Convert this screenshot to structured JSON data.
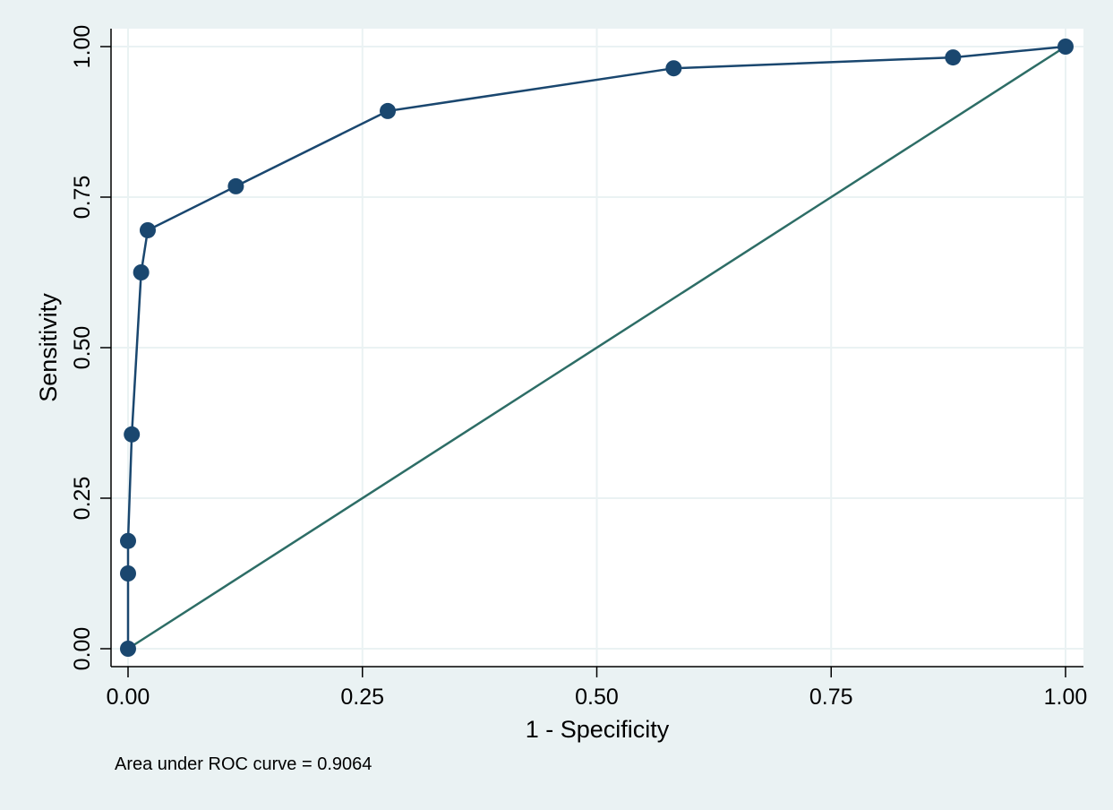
{
  "chart_data": {
    "type": "line",
    "title": "",
    "xlabel": "1 - Specificity",
    "ylabel": "Sensitivity",
    "xlim": [
      0,
      1
    ],
    "ylim": [
      0,
      1
    ],
    "grid": true,
    "xticks": [
      "0.00",
      "0.25",
      "0.50",
      "0.75",
      "1.00"
    ],
    "yticks": [
      "0.00",
      "0.25",
      "0.50",
      "0.75",
      "1.00"
    ],
    "tick_values": [
      0,
      0.25,
      0.5,
      0.75,
      1
    ],
    "series": [
      {
        "name": "ROC curve",
        "color": "#1a476f",
        "x": [
          0,
          0,
          0,
          0.004,
          0.014,
          0.021,
          0.115,
          0.277,
          0.582,
          0.88,
          1
        ],
        "y": [
          0,
          0.125,
          0.179,
          0.356,
          0.625,
          0.695,
          0.768,
          0.893,
          0.964,
          0.982,
          1
        ]
      },
      {
        "name": "Reference line",
        "color": "#2d6d66",
        "x": [
          0,
          1
        ],
        "y": [
          0,
          1
        ]
      }
    ],
    "note": "Area under ROC curve = 0.9064"
  }
}
